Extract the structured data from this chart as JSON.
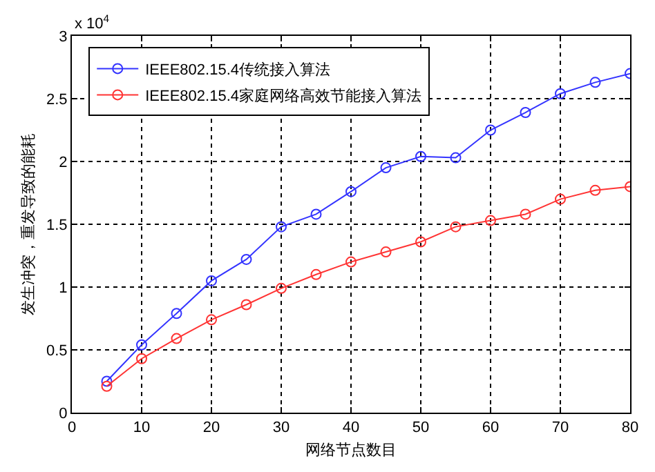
{
  "chart_data": {
    "type": "line",
    "xlabel": "网络节点数目",
    "ylabel": "发生冲突，重发导致的能耗",
    "annotations": [
      "x 10$^{4}$"
    ],
    "x": [
      5,
      10,
      15,
      20,
      25,
      30,
      35,
      40,
      45,
      50,
      55,
      60,
      65,
      70,
      75,
      80
    ],
    "series": [
      {
        "name": "IEEE802.15.4传统接入算法",
        "color": "#3333ff",
        "values": [
          0.25,
          0.54,
          0.79,
          1.05,
          1.22,
          1.48,
          1.58,
          1.76,
          1.95,
          2.04,
          2.03,
          2.25,
          2.39,
          2.54,
          2.63,
          2.7
        ]
      },
      {
        "name": "IEEE802.15.4家庭网络高效节能接入算法",
        "color": "#ff3333",
        "values": [
          0.21,
          0.43,
          0.59,
          0.74,
          0.86,
          0.99,
          1.1,
          1.2,
          1.28,
          1.36,
          1.48,
          1.53,
          1.58,
          1.7,
          1.77,
          1.8
        ]
      }
    ],
    "xlim": [
      0,
      80
    ],
    "xticks": [
      0,
      10,
      20,
      30,
      40,
      50,
      60,
      70,
      80
    ],
    "ylim": [
      0,
      3
    ],
    "yticks": [
      0,
      0.5,
      1,
      1.5,
      2,
      2.5,
      3
    ],
    "grid": true,
    "legend": "top left",
    "marker": "circle",
    "line_style": "solid"
  }
}
